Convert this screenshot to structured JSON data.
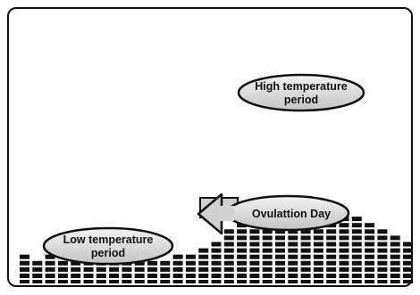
{
  "chart_data": {
    "type": "bar",
    "columns": [
      4,
      3,
      4,
      3,
      4,
      3,
      4,
      3,
      4,
      4,
      4,
      3,
      4,
      4,
      5,
      6,
      8,
      9,
      10,
      11,
      10,
      11,
      10,
      11,
      11,
      11,
      10,
      9,
      8,
      7,
      6
    ],
    "colors": {
      "cells": "#111111",
      "background": "#ffffff",
      "ellipse_fill": "#d0d0d0"
    }
  },
  "callouts": {
    "high": {
      "line1": "High temperature",
      "line2": "period"
    },
    "ovulation": {
      "label": "Ovulattion Day"
    },
    "low": {
      "line1": "Low temperature",
      "line2": "period"
    }
  }
}
